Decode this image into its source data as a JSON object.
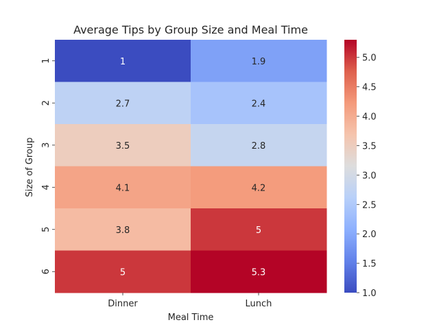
{
  "chart_data": {
    "type": "heatmap",
    "title": "Average Tips by Group Size and Meal Time",
    "xlabel": "Meal Time",
    "ylabel": "Size of Group",
    "columns": [
      "Dinner",
      "Lunch"
    ],
    "rows": [
      "1",
      "2",
      "3",
      "4",
      "5",
      "6"
    ],
    "values": [
      [
        1.0,
        1.9
      ],
      [
        2.7,
        2.4
      ],
      [
        3.5,
        2.8
      ],
      [
        4.1,
        4.2
      ],
      [
        3.8,
        5.0
      ],
      [
        5.0,
        5.3
      ]
    ],
    "annotations": [
      [
        "1",
        "1.9"
      ],
      [
        "2.7",
        "2.4"
      ],
      [
        "3.5",
        "2.8"
      ],
      [
        "4.1",
        "4.2"
      ],
      [
        "3.8",
        "5"
      ],
      [
        "5",
        "5.3"
      ]
    ],
    "vmin": 1.0,
    "vmax": 5.3,
    "colormap": "coolwarm",
    "colorbar_ticks": [
      1.0,
      1.5,
      2.0,
      2.5,
      3.0,
      3.5,
      4.0,
      4.5,
      5.0
    ],
    "colorbar_tick_labels": [
      "1.0",
      "1.5",
      "2.0",
      "2.5",
      "3.0",
      "3.5",
      "4.0",
      "4.5",
      "5.0"
    ]
  }
}
